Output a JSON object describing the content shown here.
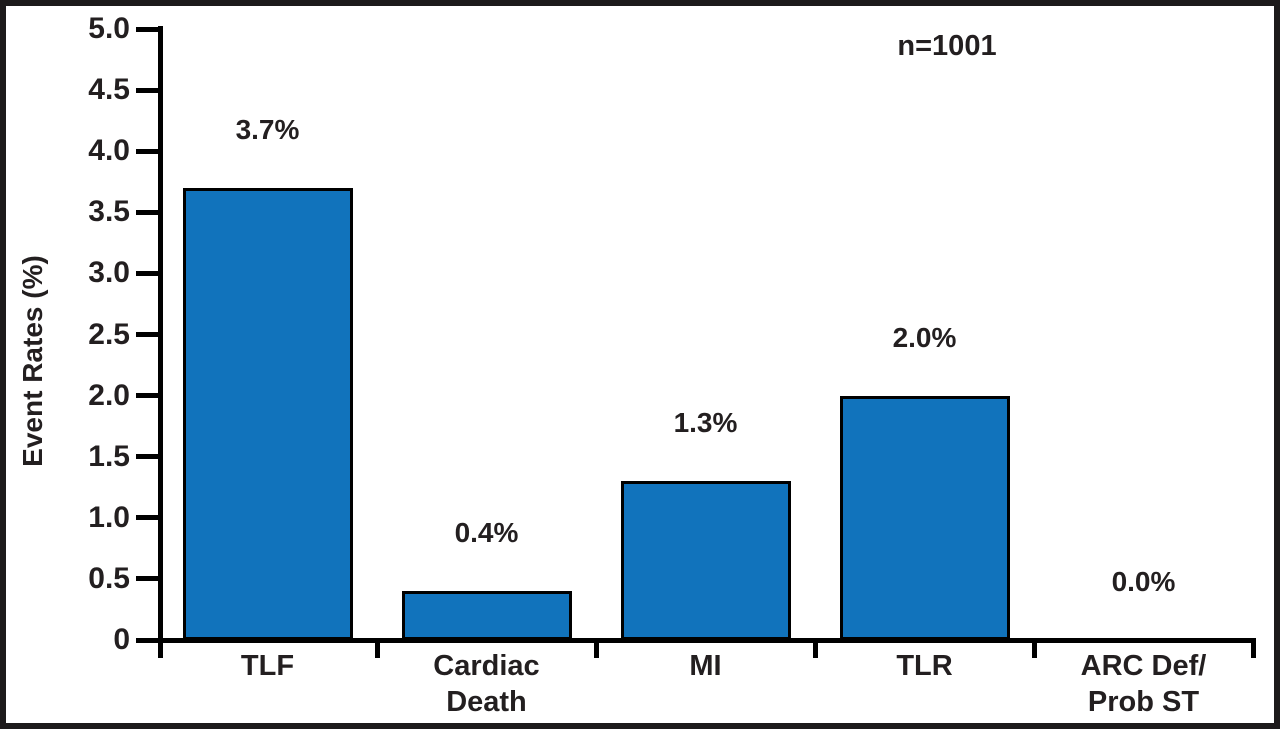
{
  "frame": {
    "border_color": "#1d1a1b",
    "background": "#ffffff",
    "text_color": "#231f20"
  },
  "chart_data": {
    "type": "bar",
    "title": "",
    "annotation": "n=1001",
    "ylabel": "Event Rates (%)",
    "xlabel": "",
    "categories": [
      "TLF",
      "Cardiac\nDeath",
      "MI",
      "TLR",
      "ARC Def/\nProb ST"
    ],
    "values": [
      3.7,
      0.4,
      1.3,
      2.0,
      0.0
    ],
    "value_labels": [
      "3.7%",
      "0.4%",
      "1.3%",
      "2.0%",
      "0.0%"
    ],
    "ylim": [
      0,
      5
    ],
    "ytick_step": 0.5,
    "ytick_labels": [
      "0",
      "0.5",
      "1.0",
      "1.5",
      "2.0",
      "2.5",
      "3.0",
      "3.5",
      "4.0",
      "4.5",
      "5.0"
    ],
    "bar_color": "#1173BC",
    "bar_border_color": "#000000",
    "axis_color": "#000000",
    "grid": false,
    "legend": null
  }
}
